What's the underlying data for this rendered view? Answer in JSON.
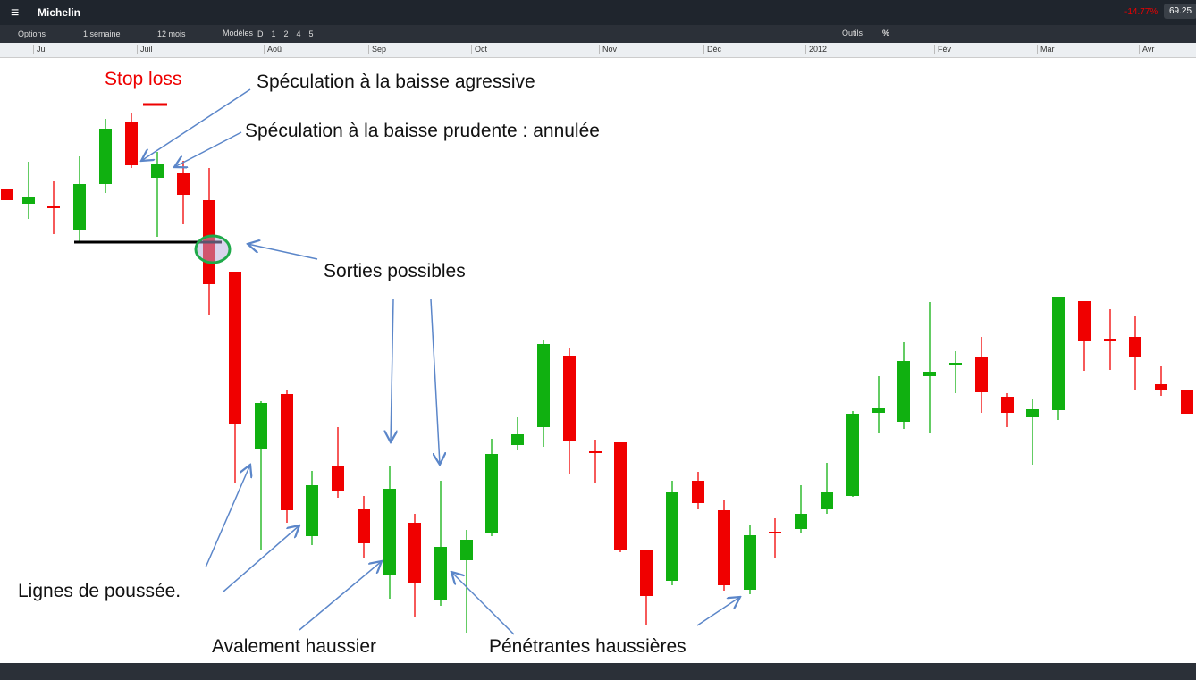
{
  "header": {
    "menu_title": "Michelin",
    "change": "-14.77%",
    "price": "69.25"
  },
  "toolbar": {
    "options": "Options",
    "period": "1 semaine",
    "range": "12 mois",
    "models": "Modèles",
    "buttons": [
      "D",
      "1",
      "2",
      "4",
      "5"
    ],
    "tools": "Outils",
    "percent": "%"
  },
  "timeline": [
    "Jui",
    "Juil",
    "Aoû",
    "Sep",
    "Oct",
    "Nov",
    "Déc",
    "2012",
    "Fév",
    "Mar",
    "Avr"
  ],
  "annotations": {
    "stop_loss": "Stop loss",
    "aggressive": "Spéculation à la baisse agressive",
    "prudent": "Spéculation à la baisse prudente : annulée",
    "exits": "Sorties possibles",
    "push_lines": "Lignes de poussée.",
    "engulfing": "Avalement haussier",
    "piercing": "Pénétrantes haussières"
  }
}
